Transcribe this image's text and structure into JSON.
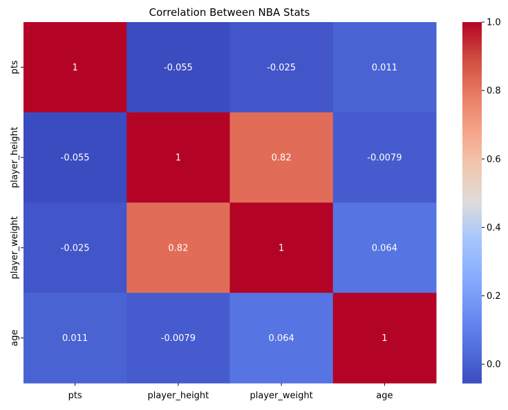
{
  "chart_data": {
    "type": "heatmap",
    "title": "Correlation Between NBA Stats",
    "x_categories": [
      "pts",
      "player_height",
      "player_weight",
      "age"
    ],
    "y_categories": [
      "pts",
      "player_height",
      "player_weight",
      "age"
    ],
    "values": [
      [
        1,
        -0.055,
        -0.025,
        0.011
      ],
      [
        -0.055,
        1,
        0.82,
        -0.0079
      ],
      [
        -0.025,
        0.82,
        1,
        0.064
      ],
      [
        0.011,
        -0.0079,
        0.064,
        1
      ]
    ],
    "annotations": [
      [
        "1",
        "-0.055",
        "-0.025",
        "0.011"
      ],
      [
        "-0.055",
        "1",
        "0.82",
        "-0.0079"
      ],
      [
        "-0.025",
        "0.82",
        "1",
        "0.064"
      ],
      [
        "0.011",
        "-0.0079",
        "0.064",
        "1"
      ]
    ],
    "colormap": "coolwarm",
    "vmin": -0.055,
    "vmax": 1.0,
    "colorbar_ticks": [
      0.0,
      0.2,
      0.4,
      0.6,
      0.8,
      1.0
    ],
    "colorbar_tick_labels": [
      "0.0",
      "0.2",
      "0.4",
      "0.6",
      "0.8",
      "1.0"
    ],
    "grid": false,
    "legend": "colorbar-right"
  }
}
